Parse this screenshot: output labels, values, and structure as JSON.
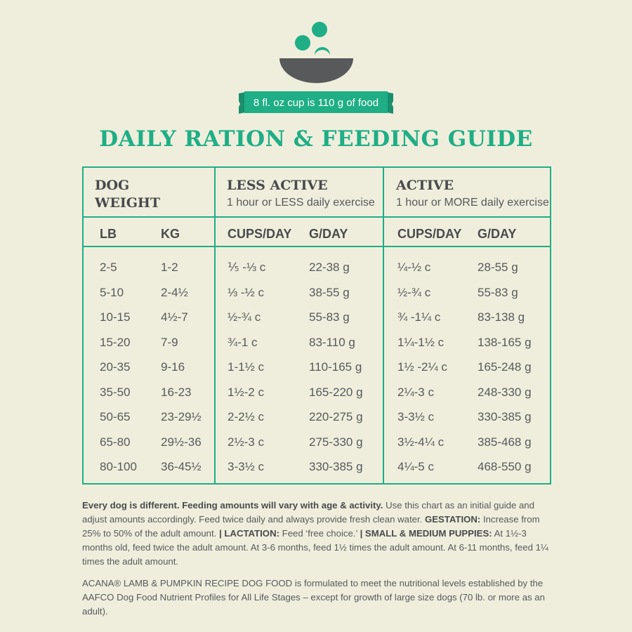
{
  "header": {
    "cup_note": "8 fl. oz cup is 110 g of food",
    "title": "DAILY RATION & FEEDING GUIDE"
  },
  "table": {
    "groups": [
      {
        "title": "DOG WEIGHT"
      },
      {
        "title": "LESS ACTIVE",
        "subtitle": "1 hour or LESS daily exercise"
      },
      {
        "title": "ACTIVE",
        "subtitle": "1 hour or MORE daily exercise"
      }
    ],
    "columns": [
      "LB",
      "KG",
      "CUPS/DAY",
      "G/DAY",
      "CUPS/DAY",
      "G/DAY"
    ],
    "rows": [
      [
        "2-5",
        "1-2",
        "⅕ -⅓ c",
        "22-38 g",
        "¼-½ c",
        "28-55 g"
      ],
      [
        "5-10",
        "2-4½",
        "⅓ -½ c",
        "38-55 g",
        "½-¾ c",
        "55-83 g"
      ],
      [
        "10-15",
        "4½-7",
        "½-¾ c",
        "55-83 g",
        "¾ -1¼ c",
        "83-138 g"
      ],
      [
        "15-20",
        "7-9",
        "¾-1 c",
        "83-110 g",
        "1¼-1½ c",
        "138-165 g"
      ],
      [
        "20-35",
        "9-16",
        "1-1½ c",
        "110-165 g",
        "1½ -2¼ c",
        "165-248 g"
      ],
      [
        "35-50",
        "16-23",
        "1½-2 c",
        "165-220 g",
        "2¼-3 c",
        "248-330 g"
      ],
      [
        "50-65",
        "23-29½",
        "2-2½ c",
        "220-275 g",
        "3-3½ c",
        "330-385 g"
      ],
      [
        "65-80",
        "29½-36",
        "2½-3 c",
        "275-330 g",
        "3½-4¼ c",
        "385-468 g"
      ],
      [
        "80-100",
        "36-45½",
        "3-3½ c",
        "330-385 g",
        "4¼-5 c",
        "468-550 g"
      ]
    ]
  },
  "notes": [
    [
      "Every dog is different. Feeding amounts will vary with age & activity.",
      " Use this chart as an initial guide and adjust amounts accordingly. Feed twice daily and always provide fresh clean water. ",
      "GESTATION:",
      " Increase from 25% to 50% of the adult amount. ",
      "| LACTATION:",
      " Feed ‘free choice.’ ",
      "| SMALL & MEDIUM PUPPIES:",
      " At 1½-3 months old, feed twice the adult amount. At 3-6 months, feed 1½ times the adult amount. At 6-11 months, feed 1¼ times the adult amount."
    ],
    [
      "ACANA® LAMB & PUMPKIN RECIPE DOG FOOD is formulated to meet the nutritional levels established by the AAFCO Dog Food Nutrient Profiles for All Life Stages – except for growth of large size dogs (70 lb. or more as an adult)."
    ]
  ]
}
